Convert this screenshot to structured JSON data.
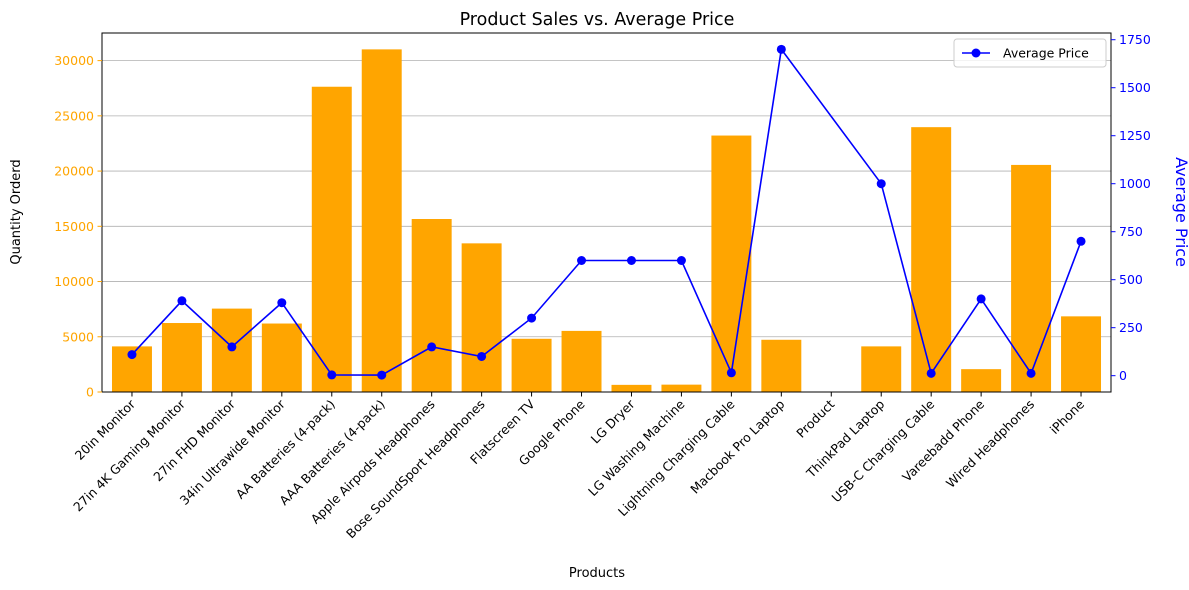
{
  "chart_data": {
    "type": "bar+line",
    "title": "Product Sales vs. Average Price",
    "xlabel": "Products",
    "ylabel_left": "Quantity Orderd",
    "ylabel_right": "Average Price",
    "ylim_left": [
      0,
      32500
    ],
    "ylim_right": [
      -85,
      1785
    ],
    "yticks_left": [
      0,
      5000,
      10000,
      15000,
      20000,
      25000,
      30000
    ],
    "yticks_right": [
      0,
      250,
      500,
      750,
      1000,
      1250,
      1500,
      1750
    ],
    "grid": "horizontal",
    "legend_position": "top-right",
    "categories": [
      "20in Monitor",
      "27in 4K Gaming Monitor",
      "27in FHD Monitor",
      "34in Ultrawide Monitor",
      "AA Batteries (4-pack)",
      "AAA Batteries (4-pack)",
      "Apple Airpods Headphones",
      "Bose SoundSport Headphones",
      "Flatscreen TV",
      "Google Phone",
      "LG Dryer",
      "LG Washing Machine",
      "Lightning Charging Cable",
      "Macbook Pro Laptop",
      "Product",
      "ThinkPad Laptop",
      "USB-C Charging Cable",
      "Vareebadd Phone",
      "Wired Headphones",
      "iPhone"
    ],
    "series": [
      {
        "name": "Quantity Orderd",
        "type": "bar",
        "axis": "left",
        "color": "#FFA500",
        "values": [
          4129,
          6244,
          7550,
          6199,
          27635,
          31017,
          15661,
          13457,
          4819,
          5532,
          646,
          666,
          23217,
          4728,
          0,
          4130,
          23975,
          2068,
          20557,
          6849
        ]
      },
      {
        "name": "Average Price",
        "type": "line",
        "axis": "right",
        "color": "#0000FF",
        "values": [
          110,
          390,
          150,
          380,
          4,
          3,
          150,
          100,
          300,
          600,
          600,
          600,
          15,
          1700,
          null,
          1000,
          12,
          400,
          12,
          700
        ]
      }
    ]
  }
}
